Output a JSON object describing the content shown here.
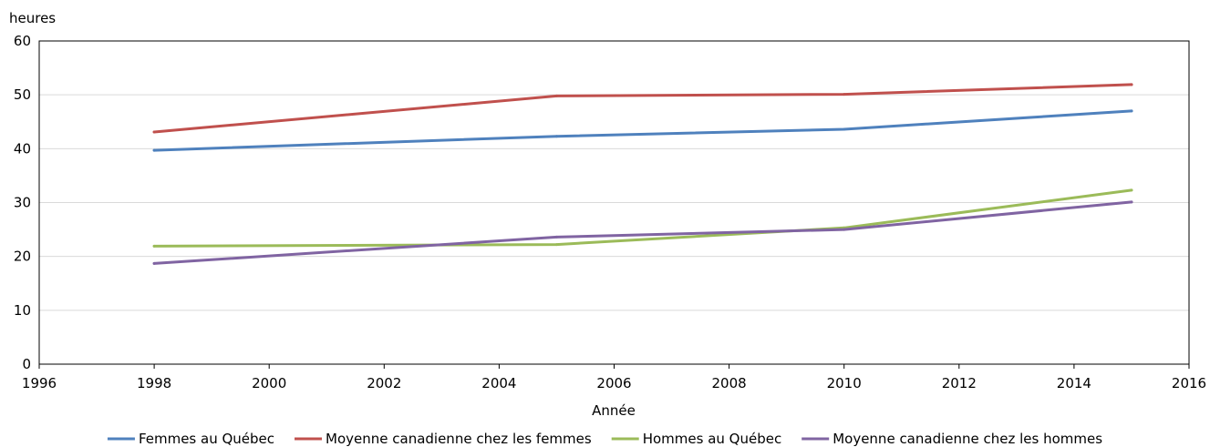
{
  "chart_data": {
    "type": "line",
    "ylabel": "heures",
    "xlabel": "Année",
    "xlim": [
      1996,
      2016
    ],
    "ylim": [
      0,
      60
    ],
    "xticks": [
      "1996",
      "1998",
      "2000",
      "2002",
      "2004",
      "2006",
      "2008",
      "2010",
      "2012",
      "2014",
      "2016"
    ],
    "yticks": [
      "0",
      "10",
      "20",
      "30",
      "40",
      "50",
      "60"
    ],
    "grid": true,
    "legend_position": "bottom",
    "x": [
      1998,
      2005,
      2010,
      2015
    ],
    "series": [
      {
        "name": "Femmes au Québec",
        "color": "#4f81bd",
        "values": [
          39.7,
          42.3,
          43.6,
          47.0
        ]
      },
      {
        "name": "Moyenne canadienne chez les femmes",
        "color": "#c0504d",
        "values": [
          43.1,
          49.8,
          50.1,
          51.9
        ]
      },
      {
        "name": "Hommes au Québec",
        "color": "#9bbb59",
        "values": [
          21.9,
          22.2,
          25.3,
          32.3
        ]
      },
      {
        "name": "Moyenne canadienne chez les hommes",
        "color": "#8064a2",
        "values": [
          18.7,
          23.6,
          25.0,
          30.1
        ]
      }
    ]
  }
}
